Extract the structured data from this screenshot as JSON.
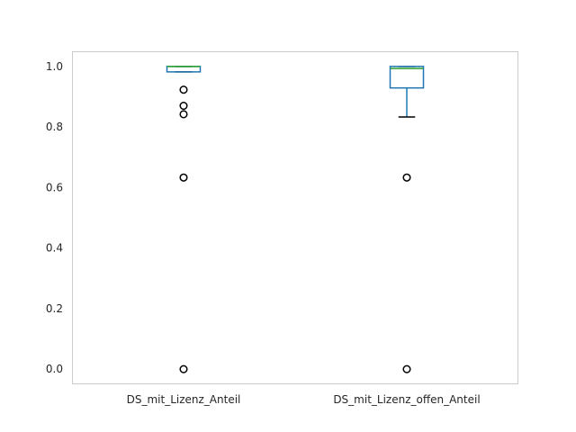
{
  "chart_data": {
    "type": "box",
    "title": "",
    "xlabel": "",
    "ylabel": "",
    "categories": [
      "DS_mit_Lizenz_Anteil",
      "DS_mit_Lizenz_offen_Anteil"
    ],
    "ylim": [
      -0.05,
      1.05
    ],
    "yticks": [
      0.0,
      0.2,
      0.4,
      0.6,
      0.8,
      1.0
    ],
    "ytick_labels": [
      "0.0",
      "0.2",
      "0.4",
      "0.6",
      "0.8",
      "1.0"
    ],
    "grid": false,
    "boxes": [
      {
        "category": "DS_mit_Lizenz_Anteil",
        "whisker_low": 0.982,
        "q1": 0.982,
        "median": 1.0,
        "q3": 1.0,
        "whisker_high": 1.0,
        "outliers": [
          0.923,
          0.87,
          0.842,
          0.633,
          0.0
        ]
      },
      {
        "category": "DS_mit_Lizenz_offen_Anteil",
        "whisker_low": 0.833,
        "q1": 0.929,
        "median": 0.993,
        "q3": 1.0,
        "whisker_high": 1.0,
        "outliers": [
          0.633,
          0.0
        ]
      }
    ],
    "colors": {
      "box": "#1f77b4",
      "median": "#2ca02c",
      "cap": "#000000",
      "outlier_edge": "#000000",
      "axis_frame": "#cccccc",
      "text": "#262626"
    }
  }
}
